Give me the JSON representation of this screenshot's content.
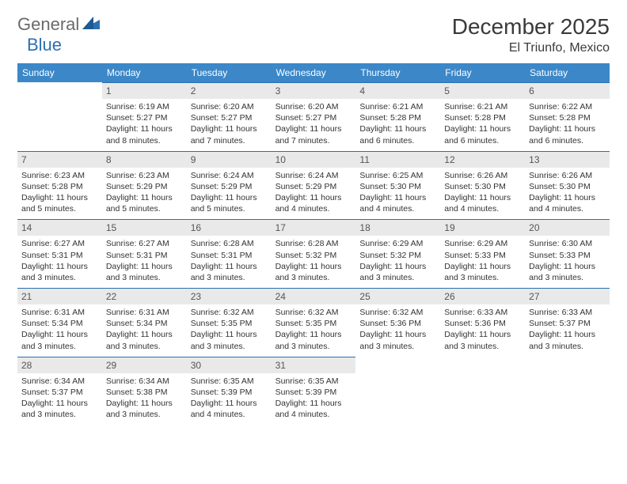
{
  "brand": {
    "word1": "General",
    "word2": "Blue"
  },
  "title": "December 2025",
  "location": "El Triunfo, Mexico",
  "colors": {
    "header_bg": "#3b87c8",
    "header_fg": "#ffffff",
    "border": "#2e6fb0",
    "daynum_bg": "#e9e9e9",
    "daynum_fg": "#555555",
    "body_text": "#333333",
    "logo_gray": "#6a6a6a",
    "logo_blue": "#2e6fb0"
  },
  "dow": [
    "Sunday",
    "Monday",
    "Tuesday",
    "Wednesday",
    "Thursday",
    "Friday",
    "Saturday"
  ],
  "start_offset": 1,
  "days": [
    {
      "n": "1",
      "sr": "6:19 AM",
      "ss": "5:27 PM",
      "dl": "11 hours and 8 minutes."
    },
    {
      "n": "2",
      "sr": "6:20 AM",
      "ss": "5:27 PM",
      "dl": "11 hours and 7 minutes."
    },
    {
      "n": "3",
      "sr": "6:20 AM",
      "ss": "5:27 PM",
      "dl": "11 hours and 7 minutes."
    },
    {
      "n": "4",
      "sr": "6:21 AM",
      "ss": "5:28 PM",
      "dl": "11 hours and 6 minutes."
    },
    {
      "n": "5",
      "sr": "6:21 AM",
      "ss": "5:28 PM",
      "dl": "11 hours and 6 minutes."
    },
    {
      "n": "6",
      "sr": "6:22 AM",
      "ss": "5:28 PM",
      "dl": "11 hours and 6 minutes."
    },
    {
      "n": "7",
      "sr": "6:23 AM",
      "ss": "5:28 PM",
      "dl": "11 hours and 5 minutes."
    },
    {
      "n": "8",
      "sr": "6:23 AM",
      "ss": "5:29 PM",
      "dl": "11 hours and 5 minutes."
    },
    {
      "n": "9",
      "sr": "6:24 AM",
      "ss": "5:29 PM",
      "dl": "11 hours and 5 minutes."
    },
    {
      "n": "10",
      "sr": "6:24 AM",
      "ss": "5:29 PM",
      "dl": "11 hours and 4 minutes."
    },
    {
      "n": "11",
      "sr": "6:25 AM",
      "ss": "5:30 PM",
      "dl": "11 hours and 4 minutes."
    },
    {
      "n": "12",
      "sr": "6:26 AM",
      "ss": "5:30 PM",
      "dl": "11 hours and 4 minutes."
    },
    {
      "n": "13",
      "sr": "6:26 AM",
      "ss": "5:30 PM",
      "dl": "11 hours and 4 minutes."
    },
    {
      "n": "14",
      "sr": "6:27 AM",
      "ss": "5:31 PM",
      "dl": "11 hours and 3 minutes."
    },
    {
      "n": "15",
      "sr": "6:27 AM",
      "ss": "5:31 PM",
      "dl": "11 hours and 3 minutes."
    },
    {
      "n": "16",
      "sr": "6:28 AM",
      "ss": "5:31 PM",
      "dl": "11 hours and 3 minutes."
    },
    {
      "n": "17",
      "sr": "6:28 AM",
      "ss": "5:32 PM",
      "dl": "11 hours and 3 minutes."
    },
    {
      "n": "18",
      "sr": "6:29 AM",
      "ss": "5:32 PM",
      "dl": "11 hours and 3 minutes."
    },
    {
      "n": "19",
      "sr": "6:29 AM",
      "ss": "5:33 PM",
      "dl": "11 hours and 3 minutes."
    },
    {
      "n": "20",
      "sr": "6:30 AM",
      "ss": "5:33 PM",
      "dl": "11 hours and 3 minutes."
    },
    {
      "n": "21",
      "sr": "6:31 AM",
      "ss": "5:34 PM",
      "dl": "11 hours and 3 minutes."
    },
    {
      "n": "22",
      "sr": "6:31 AM",
      "ss": "5:34 PM",
      "dl": "11 hours and 3 minutes."
    },
    {
      "n": "23",
      "sr": "6:32 AM",
      "ss": "5:35 PM",
      "dl": "11 hours and 3 minutes."
    },
    {
      "n": "24",
      "sr": "6:32 AM",
      "ss": "5:35 PM",
      "dl": "11 hours and 3 minutes."
    },
    {
      "n": "25",
      "sr": "6:32 AM",
      "ss": "5:36 PM",
      "dl": "11 hours and 3 minutes."
    },
    {
      "n": "26",
      "sr": "6:33 AM",
      "ss": "5:36 PM",
      "dl": "11 hours and 3 minutes."
    },
    {
      "n": "27",
      "sr": "6:33 AM",
      "ss": "5:37 PM",
      "dl": "11 hours and 3 minutes."
    },
    {
      "n": "28",
      "sr": "6:34 AM",
      "ss": "5:37 PM",
      "dl": "11 hours and 3 minutes."
    },
    {
      "n": "29",
      "sr": "6:34 AM",
      "ss": "5:38 PM",
      "dl": "11 hours and 3 minutes."
    },
    {
      "n": "30",
      "sr": "6:35 AM",
      "ss": "5:39 PM",
      "dl": "11 hours and 4 minutes."
    },
    {
      "n": "31",
      "sr": "6:35 AM",
      "ss": "5:39 PM",
      "dl": "11 hours and 4 minutes."
    }
  ],
  "labels": {
    "sunrise": "Sunrise:",
    "sunset": "Sunset:",
    "daylight": "Daylight:"
  }
}
